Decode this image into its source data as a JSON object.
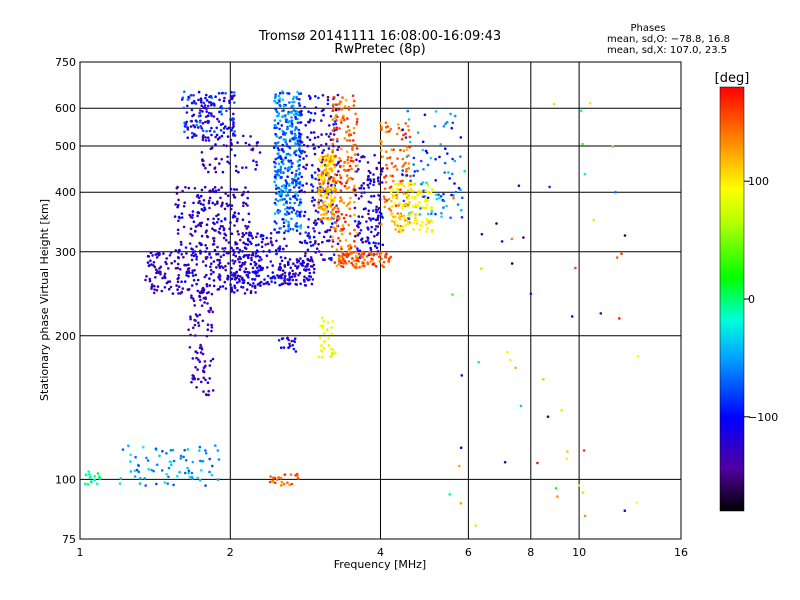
{
  "chart_data": {
    "type": "scatter",
    "title": "Tromsø 20141111 16:08:00-16:09:43",
    "subtitle": "RwPretec (8p)",
    "xlabel": "Frequency [MHz]",
    "ylabel": "Stationary phase Virtual Height [km]",
    "x_scale": "log",
    "y_scale": "log",
    "xlim": [
      1,
      16
    ],
    "ylim": [
      75,
      750
    ],
    "x_ticks": [
      1,
      2,
      4,
      6,
      8,
      10,
      16
    ],
    "x_tick_labels": [
      "1",
      "2",
      "4",
      "6",
      "8",
      "10",
      "16"
    ],
    "y_ticks": [
      75,
      100,
      200,
      300,
      400,
      500,
      600,
      750
    ],
    "y_tick_labels": [
      "75",
      "100",
      "200",
      "300",
      "400",
      "500",
      "600",
      "750"
    ],
    "grid": true,
    "legend": {
      "title": "Phases",
      "lines": [
        "mean, sd,O: −78.8, 16.8",
        "mean, sd,X: 107.0, 23.5"
      ],
      "placement": "top-right"
    },
    "colorbar": {
      "label": "[deg]",
      "min": -180,
      "max": 180,
      "ticks": [
        100,
        0,
        -100
      ],
      "tick_labels": [
        "100",
        "0",
        "−100"
      ],
      "colormap": "rainbow"
    },
    "clusters": [
      {
        "f": [
          1.02,
          1.1
        ],
        "h": [
          97,
          104
        ],
        "phase": [
          -30,
          10
        ],
        "n": 18
      },
      {
        "f": [
          1.2,
          1.9
        ],
        "h": [
          97,
          118
        ],
        "phase": [
          -80,
          -20
        ],
        "n": 80
      },
      {
        "f": [
          1.35,
          2.3
        ],
        "h": [
          245,
          300
        ],
        "phase": [
          -150,
          -100
        ],
        "n": 260
      },
      {
        "f": [
          1.55,
          2.2
        ],
        "h": [
          300,
          410
        ],
        "phase": [
          -150,
          -95
        ],
        "n": 200
      },
      {
        "f": [
          1.65,
          1.85
        ],
        "h": [
          150,
          250
        ],
        "phase": [
          -150,
          -110
        ],
        "n": 90
      },
      {
        "f": [
          1.6,
          2.05
        ],
        "h": [
          520,
          650
        ],
        "phase": [
          -140,
          -60
        ],
        "n": 150
      },
      {
        "f": [
          1.75,
          2.3
        ],
        "h": [
          440,
          530
        ],
        "phase": [
          -150,
          -100
        ],
        "n": 60
      },
      {
        "f": [
          2.0,
          2.6
        ],
        "h": [
          255,
          330
        ],
        "phase": [
          -140,
          -90
        ],
        "n": 140
      },
      {
        "f": [
          2.45,
          2.78
        ],
        "h": [
          330,
          650
        ],
        "phase": [
          -100,
          -30
        ],
        "n": 360
      },
      {
        "f": [
          2.5,
          2.95
        ],
        "h": [
          255,
          290
        ],
        "phase": [
          -140,
          -100
        ],
        "n": 100
      },
      {
        "f": [
          2.75,
          3.3
        ],
        "h": [
          285,
          640
        ],
        "phase": [
          -150,
          -80
        ],
        "n": 220
      },
      {
        "f": [
          3.0,
          3.25
        ],
        "h": [
          350,
          480
        ],
        "phase": [
          90,
          150
        ],
        "n": 160
      },
      {
        "f": [
          3.2,
          3.6
        ],
        "h": [
          280,
          640
        ],
        "phase": [
          120,
          175
        ],
        "n": 200
      },
      {
        "f": [
          3.55,
          4.05
        ],
        "h": [
          290,
          480
        ],
        "phase": [
          -150,
          -80
        ],
        "n": 130
      },
      {
        "f": [
          3.3,
          4.2
        ],
        "h": [
          278,
          300
        ],
        "phase": [
          130,
          175
        ],
        "n": 90
      },
      {
        "f": [
          4.0,
          4.6
        ],
        "h": [
          330,
          560
        ],
        "phase": [
          120,
          170
        ],
        "n": 110
      },
      {
        "f": [
          4.2,
          5.1
        ],
        "h": [
          330,
          420
        ],
        "phase": [
          80,
          115
        ],
        "n": 120
      },
      {
        "f": [
          4.4,
          5.9
        ],
        "h": [
          350,
          600
        ],
        "phase": [
          -120,
          -20
        ],
        "n": 90
      },
      {
        "f": [
          3.0,
          3.25
        ],
        "h": [
          180,
          220
        ],
        "phase": [
          70,
          100
        ],
        "n": 30
      },
      {
        "f": [
          2.4,
          2.75
        ],
        "h": [
          97,
          103
        ],
        "phase": [
          130,
          175
        ],
        "n": 22
      },
      {
        "f": [
          2.5,
          2.75
        ],
        "h": [
          185,
          200
        ],
        "phase": [
          -150,
          -80
        ],
        "n": 18
      },
      {
        "f": [
          5.5,
          13.5
        ],
        "h": [
          80,
          620
        ],
        "phase": [
          -180,
          180
        ],
        "n": 55
      }
    ]
  }
}
